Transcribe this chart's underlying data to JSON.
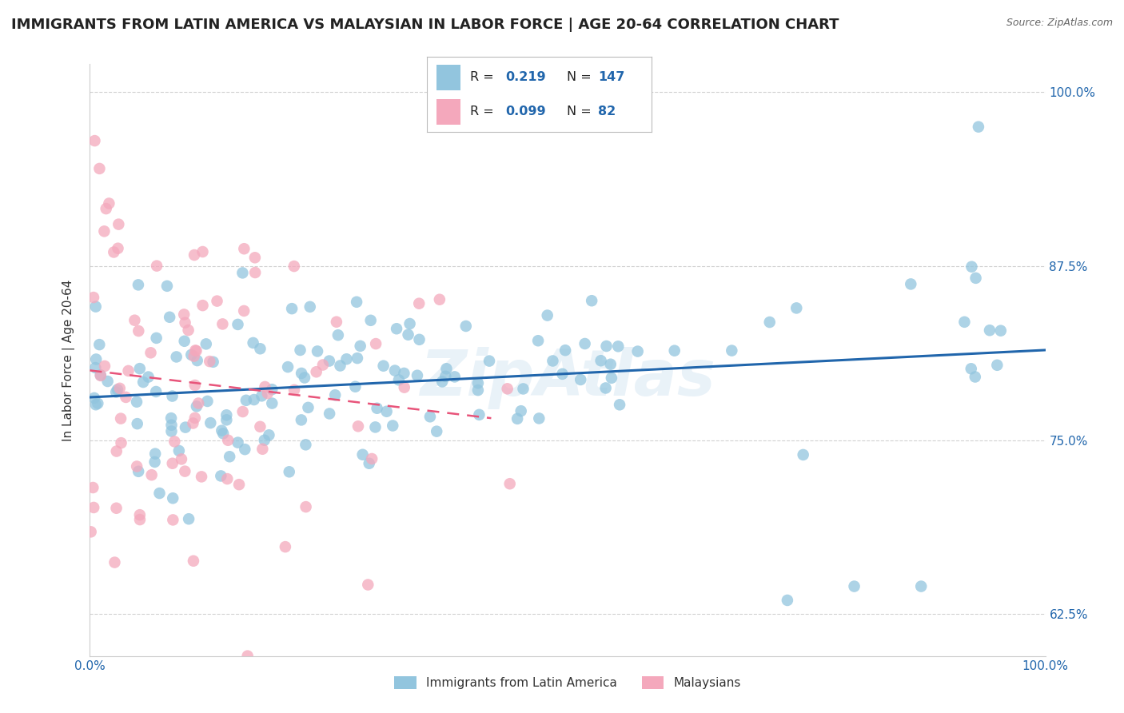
{
  "title": "IMMIGRANTS FROM LATIN AMERICA VS MALAYSIAN IN LABOR FORCE | AGE 20-64 CORRELATION CHART",
  "source": "Source: ZipAtlas.com",
  "ylabel": "In Labor Force | Age 20-64",
  "watermark": "ZipAtlas",
  "series1_label": "Immigrants from Latin America",
  "series2_label": "Malaysians",
  "series1_color": "#92c5de",
  "series2_color": "#f4a8bc",
  "series1_R": "0.219",
  "series1_N": "147",
  "series2_R": "0.099",
  "series2_N": "82",
  "legend_R_color": "#2166ac",
  "xlim": [
    0.0,
    1.0
  ],
  "ylim": [
    0.595,
    1.02
  ],
  "yticks": [
    0.625,
    0.75,
    0.875,
    1.0
  ],
  "ytick_labels": [
    "62.5%",
    "75.0%",
    "87.5%",
    "100.0%"
  ],
  "xticks": [
    0.0,
    1.0
  ],
  "xtick_labels": [
    "0.0%",
    "100.0%"
  ],
  "background_color": "#ffffff",
  "grid_color": "#cccccc",
  "title_fontsize": 13,
  "axis_fontsize": 11,
  "tick_fontsize": 11,
  "tick_color": "#2166ac"
}
